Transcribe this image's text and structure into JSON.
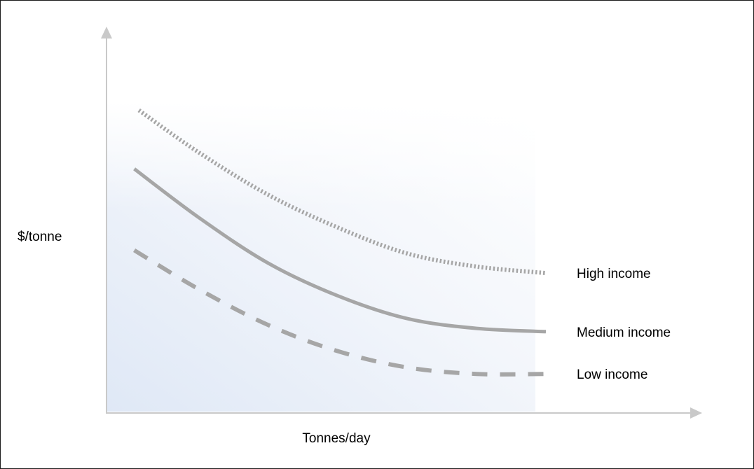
{
  "chart_data": {
    "type": "line",
    "title": "",
    "xlabel": "Tonnes/day",
    "ylabel": "$/tonne",
    "xlim": [
      0,
      100
    ],
    "ylim": [
      0,
      100
    ],
    "grid": false,
    "legend": "inline-right",
    "axis_color": "#c9c9c9",
    "line_color": "#a6a6a6",
    "series": [
      {
        "name": "High income",
        "style": "dotted",
        "x": [
          7,
          20,
          35,
          50,
          65,
          80,
          95
        ],
        "y": [
          93,
          80,
          67,
          57,
          49,
          45,
          43
        ]
      },
      {
        "name": "Medium income",
        "style": "solid",
        "x": [
          6,
          20,
          35,
          50,
          65,
          80,
          95
        ],
        "y": [
          75,
          60,
          46,
          36,
          29,
          26,
          25
        ]
      },
      {
        "name": "Low income",
        "style": "dashed",
        "x": [
          6,
          20,
          35,
          50,
          65,
          80,
          95
        ],
        "y": [
          50,
          38,
          27,
          19,
          14,
          12,
          12
        ]
      }
    ]
  }
}
